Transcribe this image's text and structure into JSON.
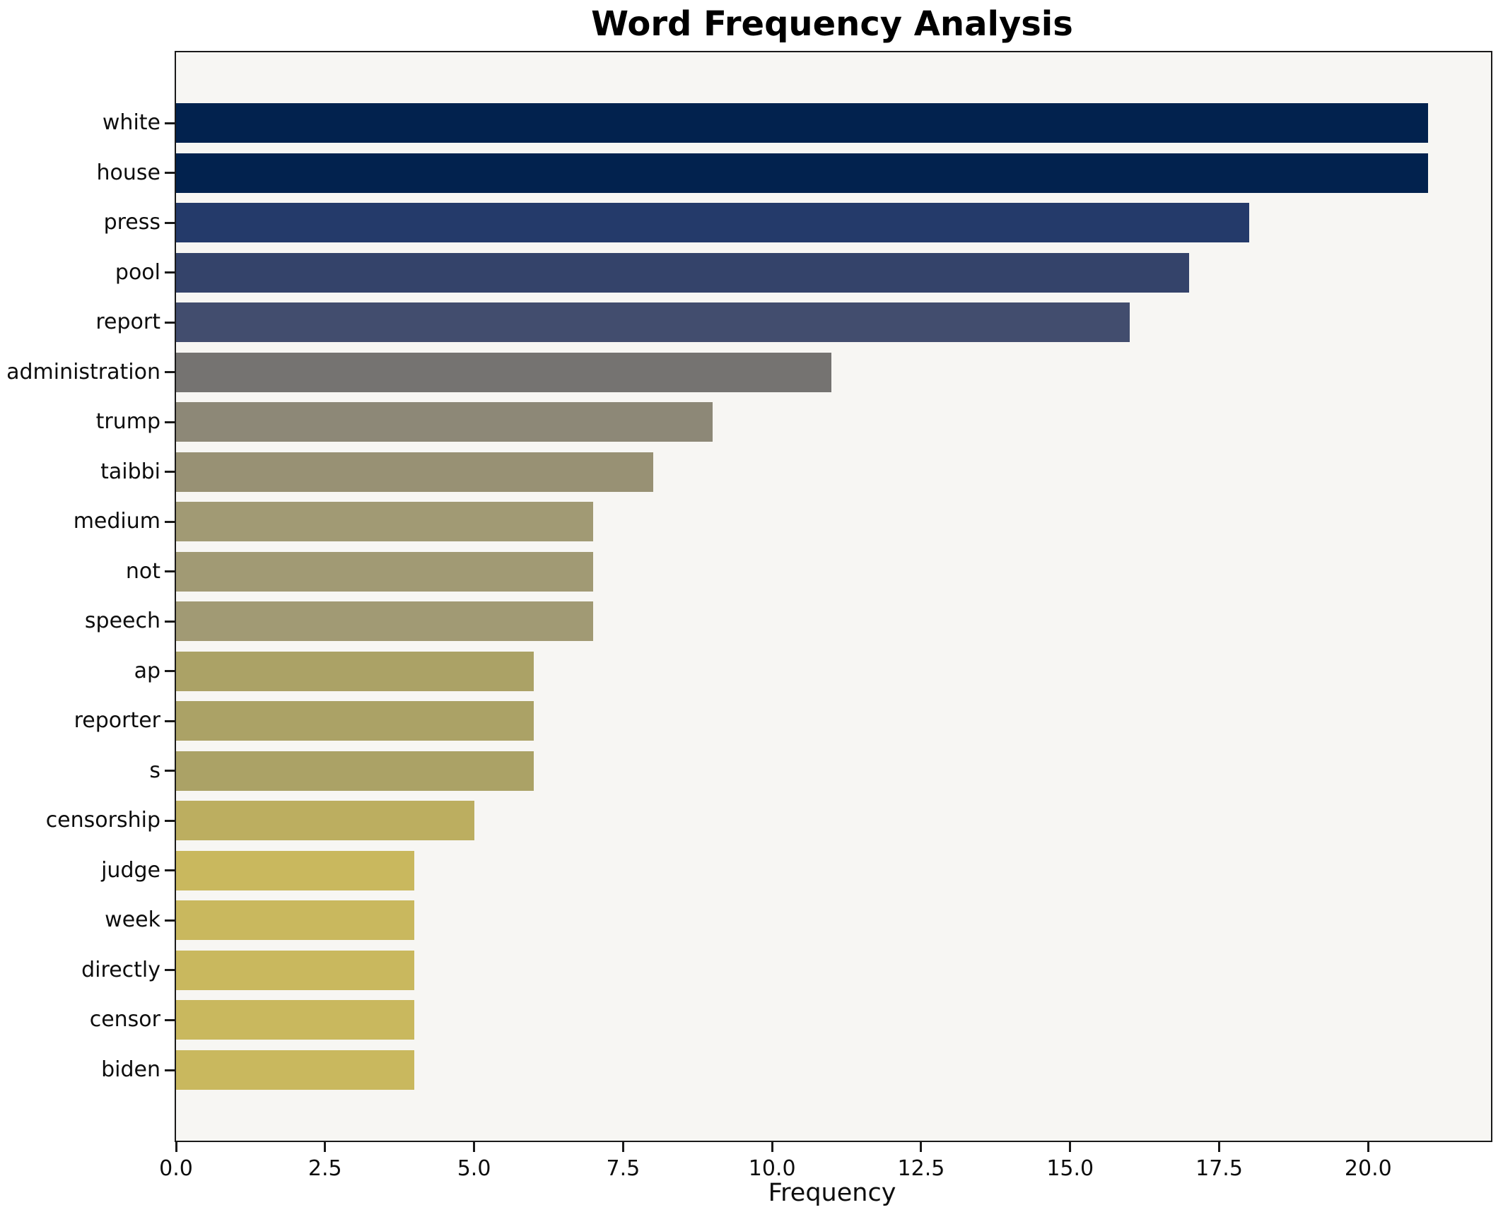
{
  "chart_data": {
    "type": "bar",
    "orientation": "horizontal",
    "title": "Word Frequency Analysis",
    "xlabel": "Frequency",
    "ylabel": "",
    "categories": [
      "white",
      "house",
      "press",
      "pool",
      "report",
      "administration",
      "trump",
      "taibbi",
      "medium",
      "not",
      "speech",
      "ap",
      "reporter",
      "s",
      "censorship",
      "judge",
      "week",
      "directly",
      "censor",
      "biden"
    ],
    "values": [
      21,
      21,
      18,
      17,
      16,
      11,
      9,
      8,
      7,
      7,
      7,
      6,
      6,
      6,
      5,
      4,
      4,
      4,
      4,
      4
    ],
    "bar_colors": [
      "#02224e",
      "#02224e",
      "#243a6a",
      "#34436a",
      "#424d6e",
      "#757371",
      "#8d8877",
      "#989174",
      "#a19a74",
      "#a19a74",
      "#a19a74",
      "#aba266",
      "#aba266",
      "#aba266",
      "#bcae60",
      "#c9b85e",
      "#c9b85e",
      "#c9b85e",
      "#c9b85e",
      "#c9b85e"
    ],
    "xlim": [
      0,
      22.06
    ],
    "xticks": [
      0,
      2.5,
      5,
      7.5,
      10,
      12.5,
      15,
      17.5,
      20
    ],
    "xtick_labels": [
      "0.0",
      "2.5",
      "5.0",
      "7.5",
      "10.0",
      "12.5",
      "15.0",
      "17.5",
      "20.0"
    ],
    "grid": false,
    "legend": false,
    "colormap_hint": "cividis",
    "plot_background": "#f7f6f3",
    "figure_background": "#ffffff",
    "spine_color": "#1a1a1a"
  }
}
